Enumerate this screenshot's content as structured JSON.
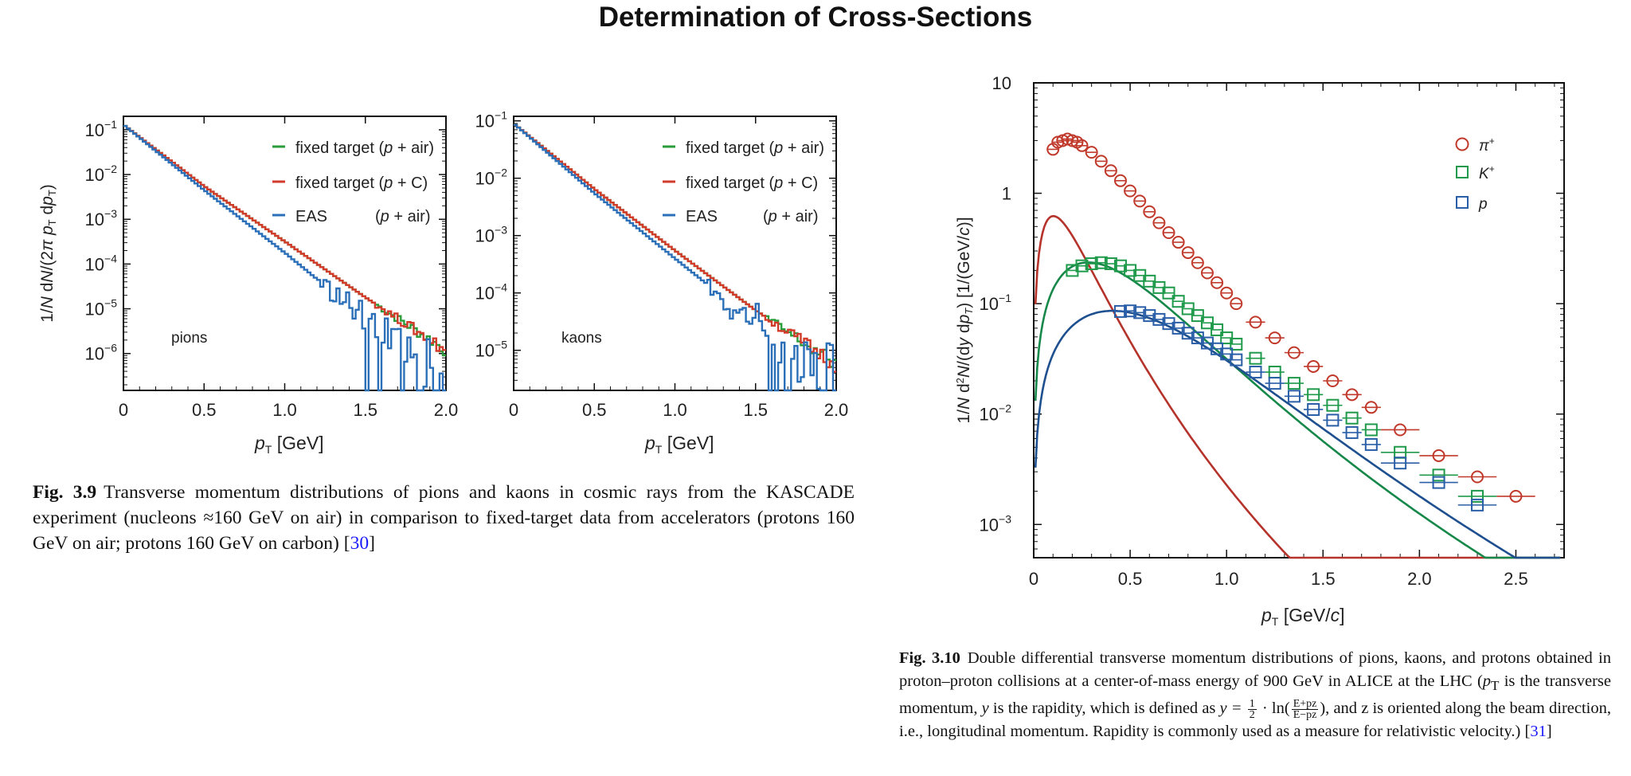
{
  "page_title": "Determination of Cross-Sections",
  "fig39": {
    "caption_label": "Fig. 3.9",
    "caption_text": "Transverse momentum distributions of pions and kaons in cosmic rays from the KASCADE experiment (nucleons ≈160 GeV on air) in comparison to fixed-target data from accelerators (protons 160 GeV on air; protons 160 GeV on carbon) [",
    "caption_ref": "30",
    "caption_end": "]"
  },
  "fig310": {
    "caption_label": "Fig. 3.10",
    "caption_part1": "Double differential transverse momentum distributions of pions, kaons, and protons obtained in proton–proton collisions at a center-of-mass energy of 900 GeV in ALICE at the LHC (",
    "caption_pt": "p",
    "caption_pt_sub": "T",
    "caption_part2": " is the transverse momentum, ",
    "caption_y": "y",
    "caption_part3": " is the rapidity, which is defined as ",
    "caption_formula_pre": "y = ",
    "caption_half_num": "1",
    "caption_half_den": "2",
    "caption_formula_mid": " · ln(",
    "caption_frac_num": "E+pz",
    "caption_frac_den": "E−pz",
    "caption_part4": "), and z is oriented along the beam direction, i.e., longitudinal momentum. Rapidity is commonly used as a measure for relativistic velocity.) [",
    "caption_ref": "31",
    "caption_end": "]"
  },
  "chart_data": [
    {
      "type": "line",
      "panel_label": "pions",
      "xlabel": "pT [GeV]",
      "ylabel": "1/N dN/(2π pT dpT)",
      "xlim": [
        0,
        2.0
      ],
      "ylim": [
        1.5e-07,
        0.2
      ],
      "yscale": "log",
      "x_ticks": [
        "0",
        "0.5",
        "1.0",
        "1.5",
        "2.0"
      ],
      "y_ticks": [
        "10−1",
        "10−2",
        "10−3",
        "10−4",
        "10−5",
        "10−6"
      ],
      "legend_placement": "top-right",
      "series": [
        {
          "name": "fixed target (p + air)",
          "color": "#2a9d3a",
          "x": [
            0,
            0.5,
            1.0,
            1.5,
            2.0
          ],
          "y": [
            0.13,
            0.0055,
            0.00032,
            1.8e-05,
            1.2e-06
          ]
        },
        {
          "name": "fixed target (p + C)",
          "color": "#d23a2a",
          "x": [
            0,
            0.5,
            1.0,
            1.5,
            2.0
          ],
          "y": [
            0.13,
            0.0055,
            0.00032,
            1.8e-05,
            1.2e-06
          ]
        },
        {
          "name": "EAS (p + air)",
          "color": "#2a6fb8",
          "x": [
            0,
            0.5,
            1.0,
            1.5,
            2.0
          ],
          "y": [
            0.13,
            0.0045,
            0.00018,
            6e-06,
            3e-07
          ]
        }
      ]
    },
    {
      "type": "line",
      "panel_label": "kaons",
      "xlabel": "pT [GeV]",
      "ylabel": "",
      "xlim": [
        0,
        2.0
      ],
      "ylim": [
        2e-06,
        0.12
      ],
      "yscale": "log",
      "x_ticks": [
        "0",
        "0.5",
        "1.0",
        "1.5",
        "2.0"
      ],
      "y_ticks": [
        "10−1",
        "10−2",
        "10−3",
        "10−4",
        "10−5"
      ],
      "legend_placement": "top-right",
      "series": [
        {
          "name": "fixed target (p + air)",
          "color": "#2a9d3a",
          "x": [
            0,
            0.5,
            1.0,
            1.5,
            2.0
          ],
          "y": [
            0.09,
            0.0065,
            0.00055,
            5e-05,
            5.5e-06
          ]
        },
        {
          "name": "fixed target (p + C)",
          "color": "#d23a2a",
          "x": [
            0,
            0.5,
            1.0,
            1.5,
            2.0
          ],
          "y": [
            0.09,
            0.0065,
            0.00055,
            5e-05,
            5.5e-06
          ]
        },
        {
          "name": "EAS (p + air)",
          "color": "#2a6fb8",
          "x": [
            0,
            0.5,
            1.0,
            1.5,
            2.0
          ],
          "y": [
            0.09,
            0.0055,
            0.0004,
            3e-05,
            3e-06
          ]
        }
      ]
    },
    {
      "type": "scatter",
      "xlabel": "pT [GeV/c]",
      "ylabel": "1/N d2N/(dy dpT) [1/(GeV/c)]",
      "xlim": [
        0,
        2.75
      ],
      "ylim": [
        0.0005,
        10
      ],
      "yscale": "log",
      "x_ticks": [
        "0",
        "0.5",
        "1.0",
        "1.5",
        "2.0",
        "2.5"
      ],
      "y_ticks": [
        "10",
        "1",
        "10−1",
        "10−2",
        "10−3"
      ],
      "legend_placement": "top-right",
      "series": [
        {
          "name": "π+",
          "color": "#c0392b",
          "marker": "circle",
          "x": [
            0.1,
            0.125,
            0.15,
            0.175,
            0.2,
            0.225,
            0.25,
            0.3,
            0.35,
            0.4,
            0.45,
            0.5,
            0.55,
            0.6,
            0.65,
            0.7,
            0.75,
            0.8,
            0.85,
            0.9,
            0.95,
            1.0,
            1.05,
            1.15,
            1.25,
            1.35,
            1.45,
            1.55,
            1.65,
            1.75,
            1.9,
            2.1,
            2.3,
            2.5
          ],
          "y": [
            2.5,
            2.9,
            3.0,
            3.1,
            3.0,
            2.9,
            2.7,
            2.35,
            1.95,
            1.6,
            1.3,
            1.05,
            0.85,
            0.68,
            0.54,
            0.44,
            0.36,
            0.29,
            0.235,
            0.19,
            0.155,
            0.125,
            0.1,
            0.068,
            0.049,
            0.036,
            0.027,
            0.02,
            0.015,
            0.0115,
            0.0072,
            0.0042,
            0.0027,
            0.0018
          ]
        },
        {
          "name": "K+",
          "color": "#1f9a4a",
          "marker": "square",
          "x": [
            0.2,
            0.25,
            0.3,
            0.35,
            0.4,
            0.45,
            0.5,
            0.55,
            0.6,
            0.65,
            0.7,
            0.75,
            0.8,
            0.85,
            0.9,
            0.95,
            1.0,
            1.05,
            1.15,
            1.25,
            1.35,
            1.45,
            1.55,
            1.65,
            1.75,
            1.9,
            2.1,
            2.3
          ],
          "y": [
            0.2,
            0.22,
            0.23,
            0.235,
            0.23,
            0.22,
            0.2,
            0.18,
            0.16,
            0.14,
            0.125,
            0.105,
            0.09,
            0.078,
            0.067,
            0.058,
            0.049,
            0.043,
            0.032,
            0.024,
            0.019,
            0.015,
            0.012,
            0.0092,
            0.0072,
            0.0045,
            0.0028,
            0.0018
          ]
        },
        {
          "name": "p",
          "color": "#2a5fa8",
          "marker": "square",
          "x": [
            0.45,
            0.5,
            0.55,
            0.6,
            0.65,
            0.7,
            0.75,
            0.8,
            0.85,
            0.9,
            0.95,
            1.0,
            1.05,
            1.15,
            1.25,
            1.35,
            1.45,
            1.55,
            1.65,
            1.75,
            1.9,
            2.1,
            2.3
          ],
          "y": [
            0.085,
            0.086,
            0.083,
            0.078,
            0.072,
            0.066,
            0.06,
            0.054,
            0.049,
            0.044,
            0.039,
            0.035,
            0.031,
            0.024,
            0.019,
            0.0145,
            0.011,
            0.0088,
            0.0068,
            0.0053,
            0.0036,
            0.0024,
            0.0015
          ]
        }
      ]
    }
  ]
}
